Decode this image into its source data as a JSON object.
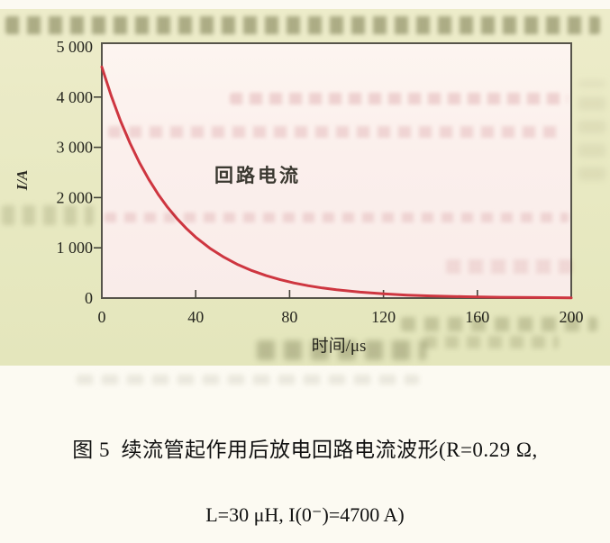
{
  "figure": {
    "caption_line1": "图 5  续流管起作用后放电回路电流波形(R=0.29 Ω,",
    "caption_line2": "L=30 μH, I(0⁻)=4700 A)"
  },
  "chart_data": {
    "type": "line",
    "title": "",
    "annotation": "回路电流",
    "xlabel": "时间/μs",
    "ylabel": "I/A",
    "xlim": [
      0,
      200
    ],
    "ylim": [
      0,
      5000
    ],
    "x_ticks": [
      0,
      40,
      80,
      120,
      160,
      200
    ],
    "x_tick_labels": [
      "0",
      "40",
      "80",
      "120",
      "160",
      "200"
    ],
    "y_ticks": [
      0,
      1000,
      2000,
      3000,
      4000,
      5000
    ],
    "y_tick_labels": [
      "0",
      "1 000",
      "2 000",
      "3 000",
      "4 000",
      "5 000"
    ],
    "grid": false,
    "legend_position": "none",
    "series": [
      {
        "name": "回路电流",
        "color": "#ce3640",
        "x": [
          0,
          4,
          8,
          12,
          16,
          20,
          24,
          28,
          32,
          36,
          40,
          46,
          52,
          58,
          64,
          70,
          76,
          82,
          88,
          94,
          100,
          110,
          120,
          130,
          140,
          155,
          170,
          185,
          200
        ],
        "y": [
          4600,
          4026,
          3523,
          3083,
          2698,
          2362,
          2067,
          1809,
          1583,
          1385,
          1212,
          993,
          813,
          665,
          545,
          446,
          365,
          299,
          245,
          200,
          164,
          118,
          84,
          60,
          43,
          26,
          16,
          10,
          6
        ]
      }
    ]
  },
  "colors": {
    "curve_red": "#ce3640",
    "scan_background": "#e8e9c2",
    "plot_background": "#fbf0ec",
    "frame": "#56544a",
    "text": "#26261f"
  }
}
